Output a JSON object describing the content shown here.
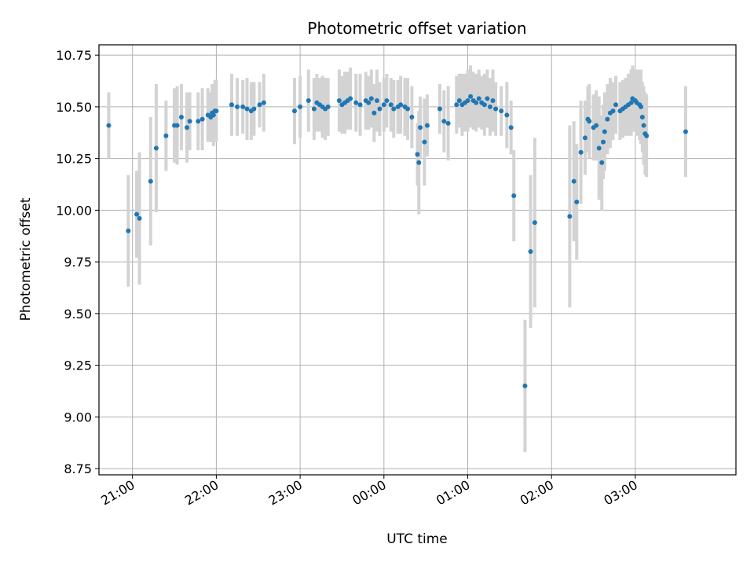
{
  "chart_data": {
    "type": "scatter",
    "title": "Photometric offset variation",
    "xlabel": "UTC time",
    "ylabel": "Photometric offset",
    "grid": true,
    "x_ticks": [
      "21:00",
      "22:00",
      "23:00",
      "00:00",
      "01:00",
      "02:00",
      "03:00"
    ],
    "y_ticks": [
      "8.75",
      "9.00",
      "9.25",
      "9.50",
      "9.75",
      "10.00",
      "10.25",
      "10.50",
      "10.75"
    ],
    "ylim": [
      8.72,
      10.8
    ],
    "xlim": [
      "20:36",
      "04:12"
    ],
    "colors": {
      "points": "#1f77b4",
      "errorbars": "#d3d3d3",
      "grid": "#b0b0b0"
    },
    "series": [
      {
        "x": [
          "20:43",
          "20:57",
          "21:03",
          "21:05",
          "21:13",
          "21:17",
          "21:24",
          "21:30",
          "21:32",
          "21:35",
          "21:39",
          "21:41",
          "21:47",
          "21:50",
          "21:54",
          "21:56",
          "21:57",
          "21:58",
          "21:59",
          "22:00",
          "22:11",
          "22:15",
          "22:19",
          "22:22",
          "22:25",
          "22:27",
          "22:31",
          "22:34",
          "22:56",
          "23:00",
          "23:06",
          "23:10",
          "23:12",
          "23:14",
          "23:16",
          "23:18",
          "23:20",
          "23:28",
          "23:30",
          "23:32",
          "23:34",
          "23:36",
          "23:40",
          "23:43",
          "23:47",
          "23:49",
          "23:51",
          "23:53",
          "23:55",
          "23:57",
          "00:00",
          "00:02",
          "00:05",
          "00:07",
          "00:10",
          "00:12",
          "00:15",
          "00:17",
          "00:20",
          "00:24",
          "00:25",
          "00:26",
          "00:29",
          "00:31",
          "00:40",
          "00:43",
          "00:46",
          "00:52",
          "00:54",
          "00:56",
          "00:58",
          "01:00",
          "01:02",
          "01:04",
          "01:06",
          "01:08",
          "01:10",
          "01:12",
          "01:14",
          "01:16",
          "01:18",
          "01:20",
          "01:24",
          "01:28",
          "01:31",
          "01:33",
          "01:41",
          "01:45",
          "01:48",
          "02:13",
          "02:16",
          "02:18",
          "02:21",
          "02:24",
          "02:26",
          "02:27",
          "02:30",
          "02:32",
          "02:34",
          "02:36",
          "02:37",
          "02:38",
          "02:40",
          "02:42",
          "02:44",
          "02:46",
          "02:49",
          "02:51",
          "02:53",
          "02:55",
          "02:57",
          "02:58",
          "03:00",
          "03:01",
          "03:03",
          "03:04",
          "03:05",
          "03:06",
          "03:07",
          "03:08",
          "03:36"
        ],
        "y": [
          10.41,
          9.9,
          9.98,
          9.96,
          10.14,
          10.3,
          10.36,
          10.41,
          10.41,
          10.45,
          10.4,
          10.43,
          10.43,
          10.44,
          10.46,
          10.45,
          10.47,
          10.46,
          10.48,
          10.48,
          10.51,
          10.5,
          10.5,
          10.49,
          10.48,
          10.49,
          10.51,
          10.52,
          10.48,
          10.5,
          10.53,
          10.49,
          10.52,
          10.51,
          10.5,
          10.49,
          10.5,
          10.53,
          10.51,
          10.52,
          10.53,
          10.54,
          10.52,
          10.51,
          10.53,
          10.52,
          10.54,
          10.47,
          10.53,
          10.49,
          10.51,
          10.53,
          10.51,
          10.49,
          10.5,
          10.51,
          10.5,
          10.49,
          10.45,
          10.27,
          10.23,
          10.4,
          10.33,
          10.41,
          10.49,
          10.43,
          10.42,
          10.51,
          10.53,
          10.51,
          10.52,
          10.53,
          10.55,
          10.53,
          10.52,
          10.54,
          10.52,
          10.51,
          10.54,
          10.5,
          10.53,
          10.49,
          10.48,
          10.46,
          10.4,
          10.07,
          9.15,
          9.8,
          9.94,
          9.97,
          10.14,
          10.04,
          10.28,
          10.35,
          10.44,
          10.43,
          10.4,
          10.41,
          10.3,
          10.23,
          10.33,
          10.38,
          10.44,
          10.47,
          10.48,
          10.51,
          10.48,
          10.49,
          10.5,
          10.51,
          10.52,
          10.54,
          10.53,
          10.52,
          10.51,
          10.5,
          10.45,
          10.41,
          10.37,
          10.36,
          10.38
        ],
        "yerr": [
          0.16,
          0.27,
          0.21,
          0.32,
          0.31,
          0.31,
          0.17,
          0.18,
          0.19,
          0.16,
          0.17,
          0.14,
          0.14,
          0.15,
          0.13,
          0.12,
          0.14,
          0.15,
          0.15,
          0.15,
          0.15,
          0.14,
          0.13,
          0.15,
          0.14,
          0.13,
          0.11,
          0.14,
          0.16,
          0.15,
          0.15,
          0.15,
          0.14,
          0.13,
          0.15,
          0.15,
          0.14,
          0.15,
          0.14,
          0.15,
          0.14,
          0.15,
          0.14,
          0.15,
          0.14,
          0.13,
          0.14,
          0.14,
          0.15,
          0.13,
          0.13,
          0.13,
          0.13,
          0.14,
          0.13,
          0.14,
          0.14,
          0.15,
          0.15,
          0.15,
          0.25,
          0.15,
          0.21,
          0.15,
          0.12,
          0.15,
          0.18,
          0.14,
          0.13,
          0.15,
          0.14,
          0.15,
          0.15,
          0.14,
          0.14,
          0.14,
          0.13,
          0.15,
          0.14,
          0.14,
          0.15,
          0.13,
          0.12,
          0.16,
          0.13,
          0.22,
          0.32,
          0.37,
          0.41,
          0.44,
          0.29,
          0.28,
          0.25,
          0.18,
          0.16,
          0.18,
          0.16,
          0.17,
          0.25,
          0.23,
          0.18,
          0.19,
          0.17,
          0.17,
          0.14,
          0.14,
          0.14,
          0.14,
          0.14,
          0.15,
          0.16,
          0.16,
          0.15,
          0.16,
          0.17,
          0.18,
          0.17,
          0.19,
          0.2,
          0.2,
          0.22
        ]
      }
    ]
  }
}
